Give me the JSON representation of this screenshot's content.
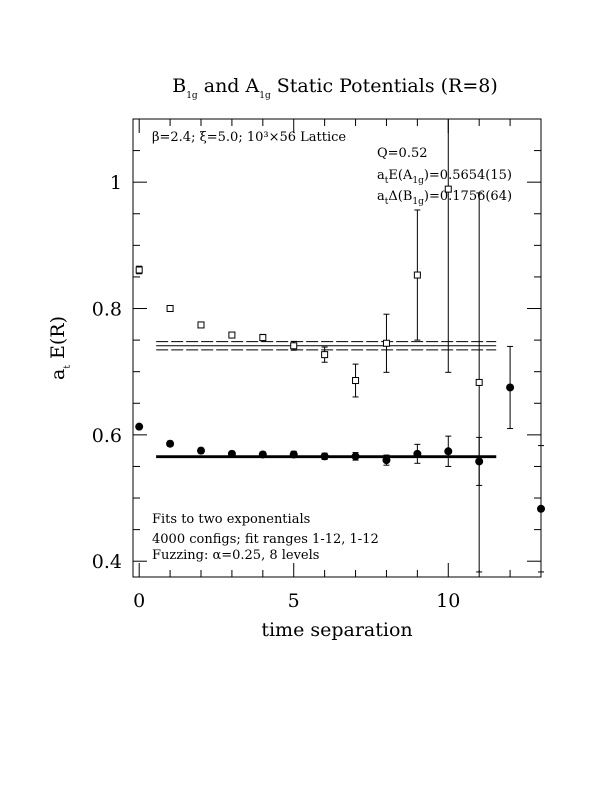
{
  "chart_data": {
    "type": "scatter",
    "title": "B1g and A1g Static Potentials (R=8)",
    "title_parts": {
      "b": "B",
      "b_sub": "1g",
      "mid": " and A",
      "a_sub": "1g",
      "tail": " Static Potentials (R=8)"
    },
    "xlabel": "time separation",
    "ylabel": "a_t E(R)",
    "ylabel_parts": {
      "main": "a",
      "sub": "t",
      "tail": " E(R)"
    },
    "xlim": [
      -0.2,
      13
    ],
    "ylim": [
      0.375,
      1.1
    ],
    "xticks": [
      0,
      5,
      10
    ],
    "xtick_labels": [
      "0",
      "5",
      "10"
    ],
    "yticks": [
      0.4,
      0.6,
      0.8,
      1.0
    ],
    "ytick_labels": [
      "0.4",
      "0.6",
      "0.8",
      "1"
    ],
    "grid": false,
    "series": [
      {
        "marker": "filled-circle",
        "points": [
          {
            "x": 0,
            "y": 0.613,
            "err": 0.003
          },
          {
            "x": 1,
            "y": 0.586,
            "err": 0.004
          },
          {
            "x": 2,
            "y": 0.575,
            "err": 0.004
          },
          {
            "x": 3,
            "y": 0.57,
            "err": 0.004
          },
          {
            "x": 4,
            "y": 0.569,
            "err": 0.004
          },
          {
            "x": 5,
            "y": 0.569,
            "err": 0.005
          },
          {
            "x": 6,
            "y": 0.566,
            "err": 0.005
          },
          {
            "x": 7,
            "y": 0.566,
            "err": 0.006
          },
          {
            "x": 8,
            "y": 0.56,
            "err": 0.008
          },
          {
            "x": 9,
            "y": 0.57,
            "err": 0.015
          },
          {
            "x": 10,
            "y": 0.574,
            "err": 0.024
          },
          {
            "x": 11,
            "y": 0.558,
            "err": 0.038
          },
          {
            "x": 12,
            "y": 0.675,
            "err": 0.065
          },
          {
            "x": 13,
            "y": 0.483,
            "err": 0.1
          }
        ],
        "fit": {
          "x_range": [
            1,
            12
          ],
          "value": 0.5654,
          "err": 0.0015
        }
      },
      {
        "marker": "open-square",
        "points": [
          {
            "x": 0,
            "y": 0.861,
            "err": 0.006
          },
          {
            "x": 1,
            "y": 0.8,
            "err": 0.003
          },
          {
            "x": 2,
            "y": 0.774,
            "err": 0.004
          },
          {
            "x": 3,
            "y": 0.758,
            "err": 0.004
          },
          {
            "x": 4,
            "y": 0.754,
            "err": 0.005
          },
          {
            "x": 5,
            "y": 0.741,
            "err": 0.007
          },
          {
            "x": 6,
            "y": 0.727,
            "err": 0.012
          },
          {
            "x": 7,
            "y": 0.686,
            "err": 0.026
          },
          {
            "x": 8,
            "y": 0.745,
            "err": 0.046
          },
          {
            "x": 9,
            "y": 0.853,
            "err": 0.103
          },
          {
            "x": 10,
            "y": 0.989,
            "err": 0.29
          },
          {
            "x": 11,
            "y": 0.683,
            "err": 0.3
          }
        ],
        "fit": {
          "x_range": [
            1,
            12
          ],
          "value": 0.741,
          "err": 0.0065
        }
      }
    ],
    "annotations": {
      "lattice": "β=2.4; ξ=5.0; 10³×56 Lattice",
      "q": "Q=0.52",
      "energy_prefix": "a",
      "energy_sub1": "t",
      "energy_mid": "E(A",
      "energy_sub2": "1g",
      "energy_val": ")=0.5654(15)",
      "delta_prefix": "a",
      "delta_sub1": "t",
      "delta_mid": "Δ(B",
      "delta_sub2": "1g",
      "delta_val": ")=0.1756(64)",
      "fits": "Fits to two exponentials",
      "configs": "4000 configs; fit ranges 1-12, 1-12",
      "fuzzing": "Fuzzing: α=0.25, 8 levels"
    }
  }
}
